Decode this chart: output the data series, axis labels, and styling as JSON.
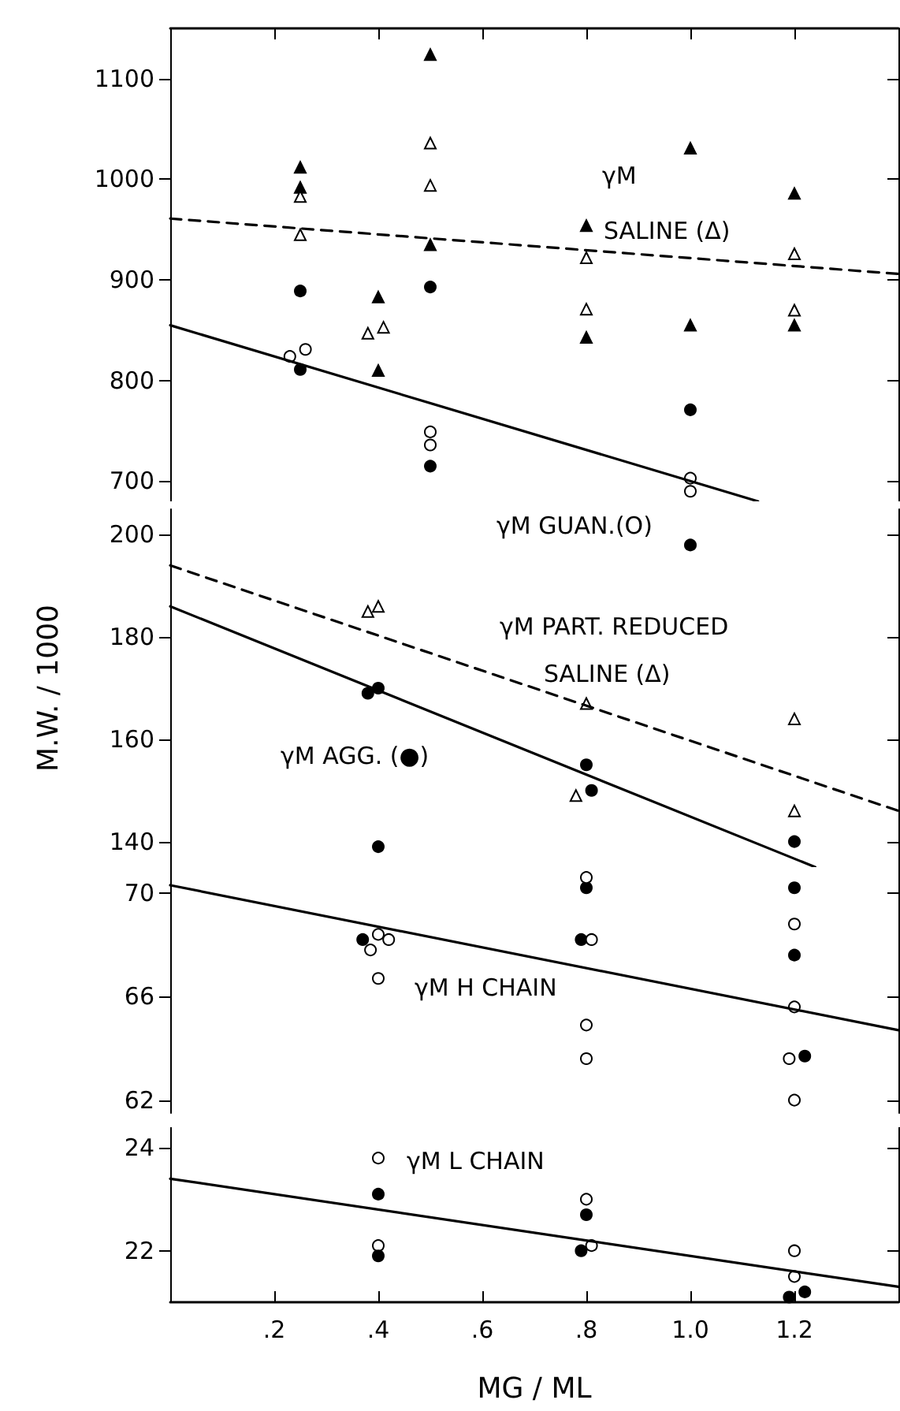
{
  "chart_data": [
    {
      "type": "scatter",
      "xlim": [
        0,
        1.4
      ],
      "xticks": [
        {
          "value": 0.2,
          "label": null
        },
        {
          "value": 0.4,
          "label": null
        },
        {
          "value": 0.6,
          "label": null
        },
        {
          "value": 0.8,
          "label": null
        },
        {
          "value": 1.0,
          "label": null
        },
        {
          "value": 1.2,
          "label": null
        }
      ],
      "ylim": [
        680,
        1150
      ],
      "yticks": [
        700,
        800,
        900,
        1000,
        1100
      ],
      "tick_labels": "y",
      "annotations": [
        "γM",
        "SALINE (Δ)"
      ],
      "series": [
        {
          "type": "scatter",
          "marker": "triangle",
          "color": "#000000",
          "x": [
            0.25,
            0.25,
            0.4,
            0.4,
            0.5,
            0.5,
            0.8,
            0.8,
            1.0,
            1.0,
            1.2,
            1.2
          ],
          "values": [
            1012,
            992,
            883,
            810,
            1124,
            935,
            954,
            843,
            1031,
            855,
            986,
            855
          ]
        },
        {
          "type": "scatter",
          "marker": "triangle",
          "color": "#ffffff",
          "x": [
            0.25,
            0.25,
            0.38,
            0.41,
            0.5,
            0.5,
            0.8,
            0.8,
            1.2,
            1.2
          ],
          "values": [
            983,
            945,
            847,
            853,
            1036,
            994,
            922,
            871,
            926,
            870
          ]
        },
        {
          "type": "scatter",
          "marker": "circle",
          "color": "#000000",
          "x": [
            0.25,
            0.25,
            0.5,
            0.5,
            1.0
          ],
          "values": [
            889,
            811,
            893,
            715,
            771
          ]
        },
        {
          "type": "scatter",
          "marker": "circle",
          "color": "#ffffff",
          "x": [
            0.23,
            0.26,
            0.5,
            0.5,
            1.0,
            1.0
          ],
          "values": [
            824,
            831,
            749,
            736,
            703,
            690
          ]
        },
        {
          "type": "line",
          "marker": "none",
          "line_style": "dashed",
          "color": "#000000",
          "x": [
            0,
            1.4
          ],
          "values": [
            961,
            906
          ]
        },
        {
          "type": "line",
          "marker": "none",
          "line_style": "solid",
          "color": "#000000",
          "x": [
            0,
            1.13
          ],
          "values": [
            855,
            680
          ]
        }
      ]
    },
    {
      "type": "scatter",
      "xlim": [
        0,
        1.4
      ],
      "ylim": [
        135,
        205
      ],
      "yticks": [
        140,
        160,
        180,
        200
      ],
      "tick_labels": "y",
      "ylabel": "M.W. / 1000",
      "annotations": [
        "γM GUAN.(O)",
        "γM PART. REDUCED",
        "SALINE (Δ)",
        "γM AGG. (●)"
      ],
      "series": [
        {
          "type": "scatter",
          "marker": "triangle",
          "color": "#ffffff",
          "x": [
            0.38,
            0.4,
            0.78,
            0.8,
            1.2,
            1.2
          ],
          "values": [
            185,
            186,
            149,
            167,
            164,
            146
          ]
        },
        {
          "type": "scatter",
          "marker": "circle",
          "color": "#000000",
          "x": [
            0.38,
            0.4,
            0.4,
            0.8,
            0.81,
            1.0,
            1.2
          ],
          "values": [
            169,
            170,
            139,
            155,
            150,
            198,
            140
          ]
        },
        {
          "type": "line",
          "marker": "none",
          "line_style": "dashed",
          "color": "#000000",
          "x": [
            0,
            1.4
          ],
          "values": [
            194,
            146
          ]
        },
        {
          "type": "line",
          "marker": "none",
          "line_style": "solid",
          "color": "#000000",
          "x": [
            0,
            1.24
          ],
          "values": [
            186,
            135
          ]
        }
      ]
    },
    {
      "type": "scatter",
      "xlim": [
        0,
        1.4
      ],
      "ylim": [
        61.5,
        71
      ],
      "yticks": [
        62,
        66,
        70
      ],
      "tick_labels": "y",
      "annotations": [
        "γM H CHAIN"
      ],
      "series": [
        {
          "type": "scatter",
          "marker": "circle",
          "color": "#000000",
          "x": [
            0.37,
            0.79,
            0.8,
            1.2,
            1.2,
            1.22
          ],
          "values": [
            68.2,
            68.2,
            70.2,
            70.2,
            67.6,
            63.7
          ]
        },
        {
          "type": "scatter",
          "marker": "circle",
          "color": "#ffffff",
          "x": [
            0.385,
            0.4,
            0.42,
            0.4,
            0.81,
            0.8,
            0.8,
            0.8,
            1.2,
            1.2,
            1.19,
            1.2
          ],
          "values": [
            67.8,
            68.4,
            68.2,
            66.7,
            68.2,
            70.6,
            64.9,
            63.6,
            68.8,
            65.6,
            63.6,
            62.0
          ]
        },
        {
          "type": "line",
          "marker": "none",
          "line_style": "solid",
          "color": "#000000",
          "x": [
            0,
            1.4
          ],
          "values": [
            70.3,
            64.7
          ]
        }
      ]
    },
    {
      "type": "scatter",
      "xlim": [
        0,
        1.4
      ],
      "xticks": [
        {
          "value": 0.2,
          "label": ".2"
        },
        {
          "value": 0.4,
          "label": ".4"
        },
        {
          "value": 0.6,
          "label": ".6"
        },
        {
          "value": 0.8,
          "label": ".8"
        },
        {
          "value": 1.0,
          "label": "1.0"
        },
        {
          "value": 1.2,
          "label": "1.2"
        }
      ],
      "ylim": [
        21,
        24.4
      ],
      "yticks": [
        22,
        24
      ],
      "xlabel": "MG / ML",
      "annotations": [
        "γM L CHAIN"
      ],
      "series": [
        {
          "type": "scatter",
          "marker": "circle",
          "color": "#ffffff",
          "x": [
            0.4,
            0.4,
            0.8,
            0.81,
            1.2,
            1.2
          ],
          "values": [
            23.8,
            22.1,
            23.0,
            22.1,
            22.0,
            21.5
          ]
        },
        {
          "type": "scatter",
          "marker": "circle",
          "color": "#000000",
          "x": [
            0.4,
            0.4,
            0.8,
            0.79,
            1.19,
            1.22
          ],
          "values": [
            23.1,
            21.9,
            22.7,
            22.0,
            21.1,
            21.2
          ]
        },
        {
          "type": "line",
          "marker": "none",
          "line_style": "solid",
          "color": "#000000",
          "x": [
            0,
            1.4
          ],
          "values": [
            23.4,
            21.3
          ]
        }
      ]
    }
  ]
}
